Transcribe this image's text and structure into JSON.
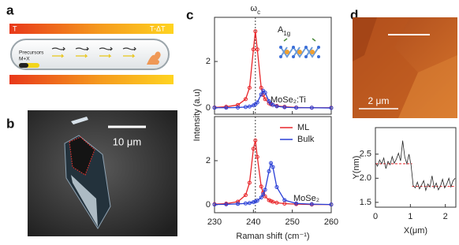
{
  "panel_labels": [
    "a",
    "b",
    "c",
    "d"
  ],
  "schematic": {
    "hot_label": "T",
    "cold_label": "T-ΔT",
    "precursor_label": "Precursors",
    "precursor_formula": "M+X"
  },
  "micrograph": {
    "scale_bar": "10 μm"
  },
  "afm_image": {
    "scale_bar": "2 μm"
  },
  "chart_data": [
    {
      "type": "line",
      "title": {
        "text": "ω",
        "sub": "c"
      },
      "x": [
        230,
        233,
        236,
        238,
        239,
        240,
        240.5,
        241,
        242,
        242.5,
        243,
        244,
        244.5,
        245,
        246,
        248,
        251,
        255,
        260
      ],
      "series": [
        {
          "name": "ML",
          "color": "#e8262a",
          "values": [
            0.02,
            0.05,
            0.13,
            0.38,
            0.87,
            2.52,
            3.3,
            2.52,
            0.87,
            0.56,
            0.38,
            0.2,
            0.16,
            0.13,
            0.09,
            0.05,
            0.02,
            0.01,
            0.01
          ]
        },
        {
          "name": "Bulk",
          "color": "#2a3fd6",
          "values": [
            0.01,
            0.01,
            0.02,
            0.04,
            0.06,
            0.11,
            0.16,
            0.24,
            0.58,
            0.74,
            0.66,
            0.29,
            0.19,
            0.13,
            0.07,
            0.03,
            0.01,
            0.01,
            0
          ]
        }
      ],
      "xlim": [
        230,
        260
      ],
      "xticks": [
        230,
        240,
        250,
        260
      ],
      "ylim": [
        -0.27,
        3.9
      ],
      "yticks": [
        0,
        2
      ],
      "vline": 240.5,
      "annotations": [
        {
          "text": "A",
          "sub": "1g"
        },
        {
          "text": "MoSe₂:Ti"
        }
      ]
    },
    {
      "type": "line",
      "x": [
        230,
        233,
        236,
        238,
        239,
        240,
        240.5,
        241,
        242,
        242.5,
        243,
        244,
        244.5,
        245,
        246,
        248,
        251,
        255,
        260
      ],
      "series": [
        {
          "name": "ML",
          "color": "#e8262a",
          "values": [
            0.03,
            0.05,
            0.14,
            0.44,
            1.0,
            2.54,
            2.92,
            2.17,
            0.83,
            0.55,
            0.38,
            0.21,
            0.17,
            0.13,
            0.09,
            0.05,
            0.03,
            0.01,
            0.01
          ]
        },
        {
          "name": "Bulk",
          "color": "#2a3fd6",
          "values": [
            0.01,
            0.02,
            0.04,
            0.06,
            0.08,
            0.12,
            0.15,
            0.19,
            0.33,
            0.47,
            0.68,
            1.52,
            1.89,
            1.71,
            0.8,
            0.21,
            0.06,
            0.03,
            0.01
          ]
        }
      ],
      "xlim": [
        230,
        260
      ],
      "xticks": [
        230,
        240,
        250,
        260
      ],
      "ylim": [
        -0.36,
        4.0
      ],
      "yticks": [
        0,
        2
      ],
      "vline": 240.5,
      "xlabel": "Raman shift (cm⁻¹)",
      "ylabel": "Intensity (a.u)",
      "legend": "upper right",
      "annotations": [
        {
          "text": "MoSe₂"
        }
      ]
    },
    {
      "type": "line",
      "x": [
        0,
        0.06,
        0.12,
        0.18,
        0.24,
        0.3,
        0.36,
        0.42,
        0.48,
        0.54,
        0.6,
        0.66,
        0.72,
        0.78,
        0.84,
        0.9,
        0.96,
        1.02,
        1.08,
        1.14,
        1.2,
        1.26,
        1.32,
        1.38,
        1.44,
        1.5,
        1.56,
        1.62,
        1.68,
        1.74,
        1.8,
        1.86,
        1.92,
        1.98,
        2.04,
        2.1,
        2.16,
        2.22,
        2.28
      ],
      "series": [
        {
          "color": "#222222",
          "values": [
            2.32,
            2.25,
            2.38,
            2.3,
            2.42,
            2.2,
            2.35,
            2.28,
            2.45,
            2.31,
            2.4,
            2.52,
            2.36,
            2.78,
            2.44,
            2.3,
            2.5,
            2.27,
            1.85,
            1.8,
            1.92,
            1.78,
            1.86,
            1.95,
            1.75,
            1.88,
            1.82,
            2.05,
            1.8,
            1.9,
            1.76,
            1.84,
            1.98,
            1.8,
            1.88,
            2.0,
            1.82,
            1.95,
            2.0
          ]
        }
      ],
      "fit_lines": [
        {
          "color": "#e8262a",
          "x": [
            0,
            1.05
          ],
          "values": [
            2.3,
            2.3
          ]
        },
        {
          "color": "#e8262a",
          "x": [
            1.05,
            2.3
          ],
          "values": [
            1.83,
            1.83
          ]
        }
      ],
      "xlim": [
        0,
        2.3
      ],
      "xticks": [
        0,
        1,
        2
      ],
      "ylim": [
        1.4,
        3.05
      ],
      "yticks": [
        {
          "value": 1.5,
          "label": "1.5"
        },
        {
          "value": 2.0,
          "label": "2.0"
        },
        {
          "value": 2.5,
          "label": "2.5"
        }
      ],
      "xlabel": "X(μm)",
      "ylabel": "Y(nm)"
    }
  ]
}
